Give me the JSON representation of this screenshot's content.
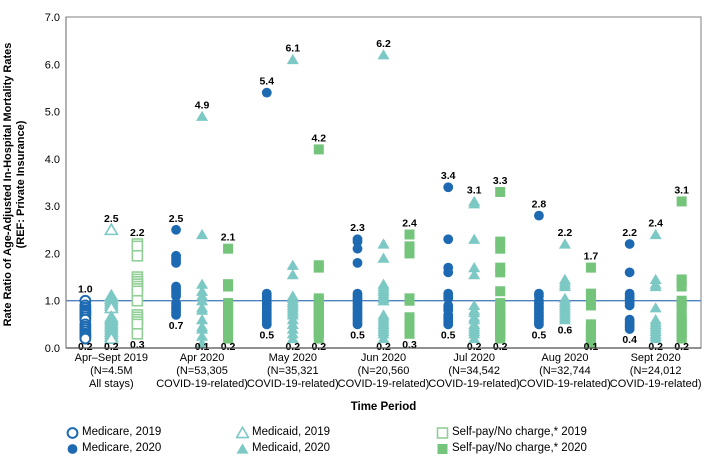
{
  "chart_data": {
    "type": "scatter",
    "ylabel_line1": "Rate Ratio of Age-Adjusted In-Hospital Mortality Rates",
    "ylabel_line2": "(REF: Private Insurance)",
    "xlabel": "Time Period",
    "ylim": [
      0.0,
      7.0
    ],
    "ytick_labels": [
      "0.0",
      "1.0",
      "2.0",
      "3.0",
      "4.0",
      "5.0",
      "6.0",
      "7.0"
    ],
    "reference_line": 1.0,
    "grid": false,
    "legend_position": "bottom",
    "colors": {
      "medicare": "#1d6ab2",
      "medicaid": "#7cc8c4",
      "selfpay": "#74c47c",
      "selfpay_open": "#92cf97",
      "ref_line": "#4f81bd",
      "axis": "#7f7f7f",
      "axis_dark": "#4d4d4d",
      "label_text": "#000000"
    },
    "series_meta": [
      {
        "id": "medicare_2019",
        "marker": "circle",
        "fill": "open",
        "color_key": "medicare"
      },
      {
        "id": "medicare_2020",
        "marker": "circle",
        "fill": "solid",
        "color_key": "medicare"
      },
      {
        "id": "medicaid_2019",
        "marker": "triangle",
        "fill": "open",
        "color_key": "medicaid"
      },
      {
        "id": "medicaid_2020",
        "marker": "triangle",
        "fill": "solid",
        "color_key": "medicaid"
      },
      {
        "id": "selfpay_2019",
        "marker": "square",
        "fill": "open",
        "color_key": "selfpay_open"
      },
      {
        "id": "selfpay_2020",
        "marker": "square",
        "fill": "solid",
        "color_key": "selfpay"
      }
    ],
    "column_offsets": [
      -26,
      0,
      26
    ],
    "groups": [
      {
        "tick": [
          "Apr–Sept 2019",
          "(N=4.5M",
          "All stays)"
        ],
        "series": [
          {
            "id": "medicare_2019",
            "max_label": "1.0",
            "min_label": "0.2",
            "points": [
              1.0,
              0.9,
              0.85,
              0.8,
              0.78,
              0.75,
              0.72,
              0.7,
              0.65,
              0.6,
              0.5,
              0.45,
              0.4,
              0.35,
              0.3,
              0.27,
              0.24,
              0.2
            ]
          },
          {
            "id": "medicaid_2019",
            "max_label": "2.5",
            "min_label": "0.2",
            "points": [
              2.5,
              1.1,
              1.05,
              1.0,
              0.95,
              0.9,
              0.85,
              0.65,
              0.6,
              0.55,
              0.5,
              0.45,
              0.4,
              0.35,
              0.3,
              0.25,
              0.2
            ]
          },
          {
            "id": "selfpay_2019",
            "max_label": "2.2",
            "min_label": "0.3",
            "points": [
              2.2,
              2.15,
              1.95,
              1.5,
              1.45,
              1.4,
              1.35,
              1.3,
              1.25,
              1.2,
              1.0,
              0.7,
              0.65,
              0.6,
              0.55,
              0.5,
              0.3
            ]
          }
        ]
      },
      {
        "tick": [
          "Apr 2020",
          "(N=53,305",
          "COVID-19-related)"
        ],
        "series": [
          {
            "id": "medicare_2020",
            "max_label": "2.5",
            "min_label": "0.7",
            "points": [
              2.5,
              1.95,
              1.9,
              1.85,
              1.8,
              1.3,
              1.25,
              1.2,
              1.15,
              1.1,
              0.95,
              0.9,
              0.85,
              0.8,
              0.75,
              0.7
            ]
          },
          {
            "id": "medicaid_2020",
            "max_label": "4.9",
            "min_label": "0.1",
            "points": [
              4.9,
              2.4,
              1.35,
              1.2,
              1.1,
              1.0,
              0.85,
              0.8,
              0.6,
              0.45,
              0.4,
              0.25,
              0.1
            ]
          },
          {
            "id": "selfpay_2020",
            "max_label": "2.1",
            "min_label": "0.2",
            "points": [
              2.1,
              1.35,
              1.3,
              0.95,
              0.9,
              0.85,
              0.8,
              0.75,
              0.7,
              0.65,
              0.6,
              0.55,
              0.5,
              0.45,
              0.35,
              0.3,
              0.2
            ]
          }
        ]
      },
      {
        "tick": [
          "May 2020",
          "(N=35,321",
          "COVID-19-related)"
        ],
        "series": [
          {
            "id": "medicare_2020",
            "max_label": "5.4",
            "min_label": "0.5",
            "points": [
              5.4,
              1.15,
              1.1,
              1.05,
              1.0,
              0.95,
              0.9,
              0.85,
              0.8,
              0.75,
              0.7,
              0.65,
              0.6,
              0.55,
              0.5
            ]
          },
          {
            "id": "medicaid_2020",
            "max_label": "6.1",
            "min_label": "0.2",
            "points": [
              6.1,
              1.75,
              1.55,
              1.1,
              1.05,
              1.0,
              0.95,
              0.9,
              0.85,
              0.8,
              0.75,
              0.7,
              0.6,
              0.5,
              0.4,
              0.3,
              0.2
            ]
          },
          {
            "id": "selfpay_2020",
            "max_label": "4.2",
            "min_label": "0.2",
            "points": [
              4.2,
              1.75,
              1.7,
              1.05,
              1.0,
              0.95,
              0.9,
              0.85,
              0.8,
              0.75,
              0.7,
              0.65,
              0.6,
              0.55,
              0.5,
              0.45,
              0.4,
              0.35,
              0.3,
              0.2
            ]
          }
        ]
      },
      {
        "tick": [
          "Jun 2020",
          "(N=20,560",
          "COVID-19-related)"
        ],
        "series": [
          {
            "id": "medicare_2020",
            "max_label": "2.3",
            "min_label": "0.5",
            "points": [
              2.3,
              2.25,
              2.1,
              1.8,
              1.15,
              1.1,
              1.05,
              1.0,
              0.95,
              0.9,
              0.85,
              0.8,
              0.75,
              0.7,
              0.65,
              0.6,
              0.55,
              0.5
            ]
          },
          {
            "id": "medicaid_2020",
            "max_label": "6.2",
            "min_label": "0.2",
            "points": [
              6.2,
              2.2,
              1.9,
              1.35,
              1.3,
              1.25,
              1.2,
              1.15,
              1.1,
              1.05,
              1.0,
              0.7,
              0.65,
              0.6,
              0.55,
              0.5,
              0.45,
              0.4,
              0.35,
              0.3,
              0.2
            ]
          },
          {
            "id": "selfpay_2020",
            "max_label": "2.4",
            "min_label": "0.3",
            "points": [
              2.4,
              2.15,
              2.0,
              1.05,
              1.0,
              0.65,
              0.6,
              0.55,
              0.5,
              0.45,
              0.4,
              0.35,
              0.3
            ]
          }
        ]
      },
      {
        "tick": [
          "Jul 2020",
          "(N=34,542",
          "COVID-19-related)"
        ],
        "series": [
          {
            "id": "medicare_2020",
            "max_label": "3.4",
            "min_label": "0.5",
            "points": [
              3.4,
              2.3,
              1.7,
              1.6,
              1.15,
              1.1,
              1.05,
              0.9,
              0.85,
              0.8,
              0.7,
              0.65,
              0.6,
              0.55,
              0.5
            ]
          },
          {
            "id": "medicaid_2020",
            "max_label": "3.1",
            "min_label": "0.2",
            "points": [
              3.1,
              3.05,
              2.3,
              1.7,
              1.55,
              0.9,
              0.8,
              0.75,
              0.65,
              0.6,
              0.5,
              0.45,
              0.4,
              0.35,
              0.3,
              0.2
            ]
          },
          {
            "id": "selfpay_2020",
            "max_label": "3.3",
            "min_label": "0.2",
            "points": [
              3.3,
              2.25,
              2.1,
              1.7,
              1.6,
              1.2,
              0.95,
              0.9,
              0.85,
              0.8,
              0.75,
              0.7,
              0.65,
              0.6,
              0.55,
              0.5,
              0.45,
              0.4,
              0.35,
              0.3,
              0.25,
              0.2
            ]
          }
        ]
      },
      {
        "tick": [
          "Aug 2020",
          "(N=32,744",
          "COVID-19-related)"
        ],
        "series": [
          {
            "id": "medicare_2020",
            "max_label": "2.8",
            "min_label": "0.5",
            "points": [
              2.8,
              1.15,
              1.1,
              1.0,
              0.95,
              0.9,
              0.85,
              0.8,
              0.75,
              0.7,
              0.65,
              0.6,
              0.55,
              0.5
            ]
          },
          {
            "id": "medicaid_2020",
            "max_label": "2.2",
            "min_label": "0.6",
            "points": [
              2.2,
              1.45,
              1.4,
              1.35,
              1.3,
              1.05,
              1.0,
              0.95,
              0.9,
              0.85,
              0.8,
              0.75,
              0.7,
              0.65,
              0.6
            ]
          },
          {
            "id": "selfpay_2020",
            "max_label": "1.7",
            "min_label": "0.1",
            "points": [
              1.7,
              1.15,
              1.1,
              0.9,
              0.5,
              0.45,
              0.4,
              0.35,
              0.3,
              0.25,
              0.2,
              0.15,
              0.1
            ]
          }
        ]
      },
      {
        "tick": [
          "Sept 2020",
          "(N=24,012",
          "COVID-19-related)"
        ],
        "series": [
          {
            "id": "medicare_2020",
            "max_label": "2.2",
            "min_label": "0.4",
            "points": [
              2.2,
              1.6,
              1.15,
              1.1,
              1.05,
              1.0,
              0.95,
              0.9,
              0.6,
              0.55,
              0.5,
              0.45,
              0.4
            ]
          },
          {
            "id": "medicaid_2020",
            "max_label": "2.4",
            "min_label": "0.2",
            "points": [
              2.4,
              1.45,
              1.35,
              1.3,
              0.85,
              0.6,
              0.55,
              0.5,
              0.45,
              0.4,
              0.35,
              0.3,
              0.25,
              0.2
            ]
          },
          {
            "id": "selfpay_2020",
            "max_label": "3.1",
            "min_label": "0.2",
            "points": [
              3.1,
              1.45,
              1.4,
              1.3,
              1.0,
              0.95,
              0.9,
              0.8,
              0.65,
              0.6,
              0.55,
              0.5,
              0.45,
              0.4,
              0.35,
              0.3,
              0.25,
              0.2
            ]
          }
        ]
      }
    ],
    "legend": [
      {
        "id": "medicare_2019",
        "label": "Medicare, 2019"
      },
      {
        "id": "medicare_2020",
        "label": "Medicare, 2020"
      },
      {
        "id": "medicaid_2019",
        "label": "Medicaid, 2019"
      },
      {
        "id": "medicaid_2020",
        "label": "Medicaid, 2020"
      },
      {
        "id": "selfpay_2019",
        "label": "Self-pay/No charge,* 2019"
      },
      {
        "id": "selfpay_2020",
        "label": "Self-pay/No charge,* 2020"
      }
    ]
  }
}
